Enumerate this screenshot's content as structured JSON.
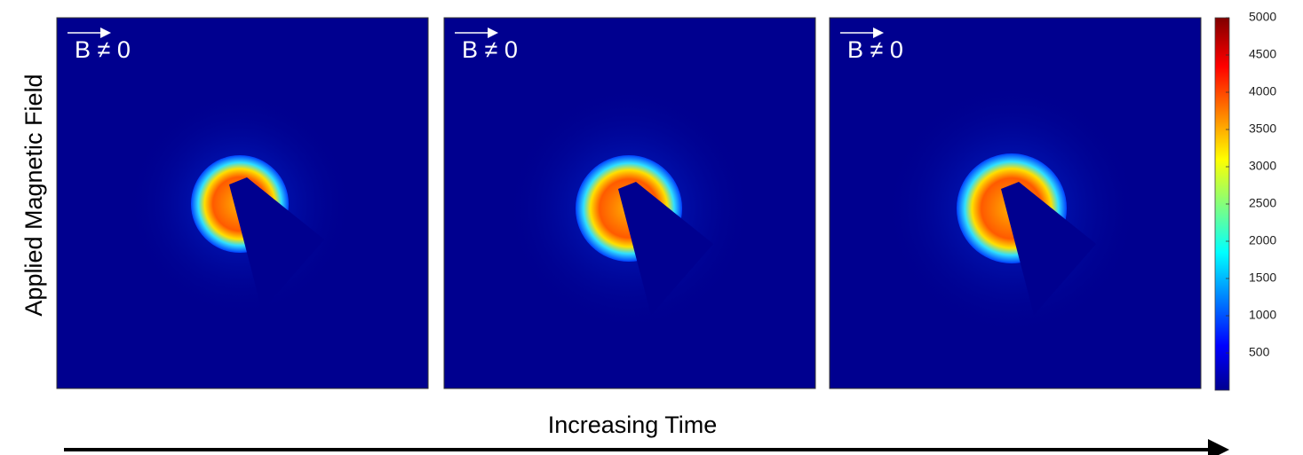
{
  "y_label": "Applied Magnetic Field",
  "x_label": "Increasing Time",
  "panels": [
    {
      "label": "B ≠ 0"
    },
    {
      "label": "B ≠ 0"
    },
    {
      "label": "B ≠ 0"
    }
  ],
  "colorbar": {
    "lim": [
      0,
      5000
    ],
    "ticks": [
      500,
      1000,
      1500,
      2000,
      2500,
      3000,
      3500,
      4000,
      4500,
      5000
    ]
  }
}
